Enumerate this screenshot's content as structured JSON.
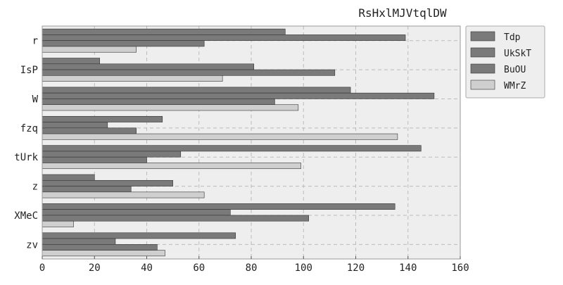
{
  "chart_data": {
    "type": "bar",
    "orientation": "horizontal",
    "title": "RsHxlMJVtqlDW",
    "xlabel": "",
    "ylabel": "",
    "xlim": [
      0,
      160
    ],
    "x_ticks": [
      0,
      20,
      40,
      60,
      80,
      100,
      120,
      140,
      160
    ],
    "grid": true,
    "legend_position": "top-right, outside plot",
    "categories": [
      "r",
      "IsP",
      "W",
      "fzq",
      "tUrk",
      "z",
      "XMeC",
      "zv"
    ],
    "series": [
      {
        "name": "Tdp",
        "color": "#7a7a7a",
        "values": [
          93,
          22,
          118,
          46,
          145,
          20,
          135,
          74
        ]
      },
      {
        "name": "UkSkT",
        "color": "#7a7a7a",
        "values": [
          139,
          81,
          150,
          25,
          53,
          50,
          72,
          28
        ]
      },
      {
        "name": "BuOU",
        "color": "#7a7a7a",
        "values": [
          62,
          112,
          89,
          36,
          40,
          34,
          102,
          44
        ]
      },
      {
        "name": "WMrZ",
        "color": "#cfcfcf",
        "values": [
          36,
          69,
          98,
          136,
          99,
          62,
          12,
          47
        ]
      }
    ]
  }
}
